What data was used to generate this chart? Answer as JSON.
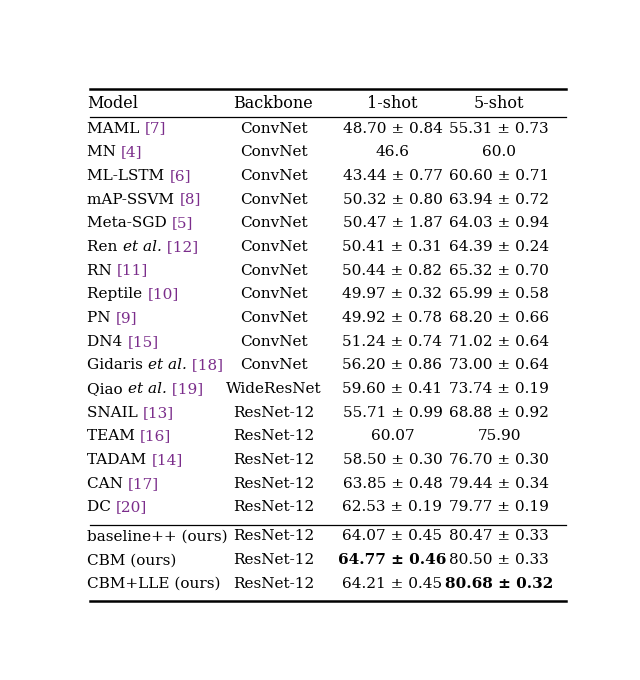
{
  "columns": [
    "Model",
    "Backbone",
    "1-shot",
    "5-shot"
  ],
  "col_aligns": [
    "left",
    "center",
    "center",
    "center"
  ],
  "rows": [
    {
      "model_parts": [
        [
          "MAML ",
          false,
          false,
          "#000000"
        ],
        [
          "[7]",
          false,
          false,
          "#7B2D8B"
        ]
      ],
      "backbone": "ConvNet",
      "shot1": "48.70 ± 0.84",
      "shot5": "55.31 ± 0.73",
      "shot1_bold": false,
      "shot5_bold": false,
      "group": "top"
    },
    {
      "model_parts": [
        [
          "MN ",
          false,
          false,
          "#000000"
        ],
        [
          "[4]",
          false,
          false,
          "#7B2D8B"
        ]
      ],
      "backbone": "ConvNet",
      "shot1": "46.6",
      "shot5": "60.0",
      "shot1_bold": false,
      "shot5_bold": false,
      "group": "top"
    },
    {
      "model_parts": [
        [
          "ML-LSTM ",
          false,
          false,
          "#000000"
        ],
        [
          "[6]",
          false,
          false,
          "#7B2D8B"
        ]
      ],
      "backbone": "ConvNet",
      "shot1": "43.44 ± 0.77",
      "shot5": "60.60 ± 0.71",
      "shot1_bold": false,
      "shot5_bold": false,
      "group": "top"
    },
    {
      "model_parts": [
        [
          "mAP-SSVM ",
          false,
          false,
          "#000000"
        ],
        [
          "[8]",
          false,
          false,
          "#7B2D8B"
        ]
      ],
      "backbone": "ConvNet",
      "shot1": "50.32 ± 0.80",
      "shot5": "63.94 ± 0.72",
      "shot1_bold": false,
      "shot5_bold": false,
      "group": "top"
    },
    {
      "model_parts": [
        [
          "Meta-SGD ",
          false,
          false,
          "#000000"
        ],
        [
          "[5]",
          false,
          false,
          "#7B2D8B"
        ]
      ],
      "backbone": "ConvNet",
      "shot1": "50.47 ± 1.87",
      "shot5": "64.03 ± 0.94",
      "shot1_bold": false,
      "shot5_bold": false,
      "group": "top"
    },
    {
      "model_parts": [
        [
          "Ren ",
          false,
          false,
          "#000000"
        ],
        [
          "et al.",
          false,
          true,
          "#000000"
        ],
        [
          " [12]",
          false,
          false,
          "#7B2D8B"
        ]
      ],
      "backbone": "ConvNet",
      "shot1": "50.41 ± 0.31",
      "shot5": "64.39 ± 0.24",
      "shot1_bold": false,
      "shot5_bold": false,
      "group": "top"
    },
    {
      "model_parts": [
        [
          "RN ",
          false,
          false,
          "#000000"
        ],
        [
          "[11]",
          false,
          false,
          "#7B2D8B"
        ]
      ],
      "backbone": "ConvNet",
      "shot1": "50.44 ± 0.82",
      "shot5": "65.32 ± 0.70",
      "shot1_bold": false,
      "shot5_bold": false,
      "group": "top"
    },
    {
      "model_parts": [
        [
          "Reptile ",
          false,
          false,
          "#000000"
        ],
        [
          "[10]",
          false,
          false,
          "#7B2D8B"
        ]
      ],
      "backbone": "ConvNet",
      "shot1": "49.97 ± 0.32",
      "shot5": "65.99 ± 0.58",
      "shot1_bold": false,
      "shot5_bold": false,
      "group": "top"
    },
    {
      "model_parts": [
        [
          "PN ",
          false,
          false,
          "#000000"
        ],
        [
          "[9]",
          false,
          false,
          "#7B2D8B"
        ]
      ],
      "backbone": "ConvNet",
      "shot1": "49.92 ± 0.78",
      "shot5": "68.20 ± 0.66",
      "shot1_bold": false,
      "shot5_bold": false,
      "group": "top"
    },
    {
      "model_parts": [
        [
          "DN4 ",
          false,
          false,
          "#000000"
        ],
        [
          "[15]",
          false,
          false,
          "#7B2D8B"
        ]
      ],
      "backbone": "ConvNet",
      "shot1": "51.24 ± 0.74",
      "shot5": "71.02 ± 0.64",
      "shot1_bold": false,
      "shot5_bold": false,
      "group": "top"
    },
    {
      "model_parts": [
        [
          "Gidaris ",
          false,
          false,
          "#000000"
        ],
        [
          "et al.",
          false,
          true,
          "#000000"
        ],
        [
          " [18]",
          false,
          false,
          "#7B2D8B"
        ]
      ],
      "backbone": "ConvNet",
      "shot1": "56.20 ± 0.86",
      "shot5": "73.00 ± 0.64",
      "shot1_bold": false,
      "shot5_bold": false,
      "group": "top"
    },
    {
      "model_parts": [
        [
          "Qiao ",
          false,
          false,
          "#000000"
        ],
        [
          "et al.",
          false,
          true,
          "#000000"
        ],
        [
          " [19]",
          false,
          false,
          "#7B2D8B"
        ]
      ],
      "backbone": "WideResNet",
      "shot1": "59.60 ± 0.41",
      "shot5": "73.74 ± 0.19",
      "shot1_bold": false,
      "shot5_bold": false,
      "group": "top"
    },
    {
      "model_parts": [
        [
          "SNAIL ",
          false,
          false,
          "#000000"
        ],
        [
          "[13]",
          false,
          false,
          "#7B2D8B"
        ]
      ],
      "backbone": "ResNet-12",
      "shot1": "55.71 ± 0.99",
      "shot5": "68.88 ± 0.92",
      "shot1_bold": false,
      "shot5_bold": false,
      "group": "top"
    },
    {
      "model_parts": [
        [
          "TEAM ",
          false,
          false,
          "#000000"
        ],
        [
          "[16]",
          false,
          false,
          "#7B2D8B"
        ]
      ],
      "backbone": "ResNet-12",
      "shot1": "60.07",
      "shot5": "75.90",
      "shot1_bold": false,
      "shot5_bold": false,
      "group": "top"
    },
    {
      "model_parts": [
        [
          "TADAM ",
          false,
          false,
          "#000000"
        ],
        [
          "[14]",
          false,
          false,
          "#7B2D8B"
        ]
      ],
      "backbone": "ResNet-12",
      "shot1": "58.50 ± 0.30",
      "shot5": "76.70 ± 0.30",
      "shot1_bold": false,
      "shot5_bold": false,
      "group": "top"
    },
    {
      "model_parts": [
        [
          "CAN ",
          false,
          false,
          "#000000"
        ],
        [
          "[17]",
          false,
          false,
          "#7B2D8B"
        ]
      ],
      "backbone": "ResNet-12",
      "shot1": "63.85 ± 0.48",
      "shot5": "79.44 ± 0.34",
      "shot1_bold": false,
      "shot5_bold": false,
      "group": "top"
    },
    {
      "model_parts": [
        [
          "DC ",
          false,
          false,
          "#000000"
        ],
        [
          "[20]",
          false,
          false,
          "#7B2D8B"
        ]
      ],
      "backbone": "ResNet-12",
      "shot1": "62.53 ± 0.19",
      "shot5": "79.77 ± 0.19",
      "shot1_bold": false,
      "shot5_bold": false,
      "group": "top"
    },
    {
      "model_parts": [
        [
          "baseline++ (ours)",
          false,
          false,
          "#000000"
        ]
      ],
      "backbone": "ResNet-12",
      "shot1": "64.07 ± 0.45",
      "shot5": "80.47 ± 0.33",
      "shot1_bold": false,
      "shot5_bold": false,
      "group": "bottom"
    },
    {
      "model_parts": [
        [
          "CBM (ours)",
          false,
          false,
          "#000000"
        ]
      ],
      "backbone": "ResNet-12",
      "shot1": "64.77 ± 0.46",
      "shot5": "80.50 ± 0.33",
      "shot1_bold": true,
      "shot5_bold": false,
      "group": "bottom"
    },
    {
      "model_parts": [
        [
          "CBM+LLE (ours)",
          false,
          false,
          "#000000"
        ]
      ],
      "backbone": "ResNet-12",
      "shot1": "64.21 ± 0.45",
      "shot5": "80.68 ± 0.32",
      "shot1_bold": false,
      "shot5_bold": true,
      "group": "bottom"
    }
  ],
  "bg_color": "#FFFFFF",
  "text_color": "#000000",
  "ref_color": "#7B2D8B",
  "font_size": 11.0,
  "header_font_size": 11.5,
  "fig_width": 6.4,
  "fig_height": 6.8,
  "dpi": 100
}
